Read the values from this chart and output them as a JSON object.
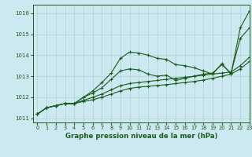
{
  "title": "Graphe pression niveau de la mer (hPa)",
  "bg_color": "#cce8f0",
  "grid_color": "#b0d0d8",
  "line_color": "#1a5c1a",
  "xlim": [
    -0.5,
    23
  ],
  "ylim": [
    1010.8,
    1016.4
  ],
  "yticks": [
    1011,
    1012,
    1013,
    1014,
    1015,
    1016
  ],
  "xticks": [
    0,
    1,
    2,
    3,
    4,
    5,
    6,
    7,
    8,
    9,
    10,
    11,
    12,
    13,
    14,
    15,
    16,
    17,
    18,
    19,
    20,
    21,
    22,
    23
  ],
  "series": [
    [
      1011.2,
      1011.5,
      1011.6,
      1011.7,
      1011.7,
      1012.0,
      1012.3,
      1012.7,
      1013.15,
      1013.85,
      1014.15,
      1014.1,
      1014.0,
      1013.85,
      1013.8,
      1013.55,
      1013.5,
      1013.4,
      1013.25,
      1013.1,
      1013.6,
      1013.1,
      1015.3,
      1016.1
    ],
    [
      1011.2,
      1011.5,
      1011.6,
      1011.7,
      1011.7,
      1012.0,
      1012.2,
      1012.45,
      1012.85,
      1013.25,
      1013.35,
      1013.3,
      1013.1,
      1013.0,
      1013.05,
      1012.8,
      1012.9,
      1013.0,
      1013.1,
      1013.15,
      1013.55,
      1013.15,
      1014.8,
      1015.3
    ],
    [
      1011.2,
      1011.5,
      1011.6,
      1011.7,
      1011.7,
      1011.85,
      1012.0,
      1012.15,
      1012.35,
      1012.55,
      1012.65,
      1012.7,
      1012.75,
      1012.8,
      1012.85,
      1012.9,
      1012.95,
      1013.0,
      1013.05,
      1013.1,
      1013.15,
      1013.2,
      1013.5,
      1013.9
    ],
    [
      1011.2,
      1011.5,
      1011.6,
      1011.7,
      1011.7,
      1011.8,
      1011.88,
      1012.0,
      1012.15,
      1012.3,
      1012.42,
      1012.48,
      1012.52,
      1012.56,
      1012.6,
      1012.65,
      1012.7,
      1012.75,
      1012.82,
      1012.9,
      1013.0,
      1013.1,
      1013.35,
      1013.7
    ]
  ]
}
